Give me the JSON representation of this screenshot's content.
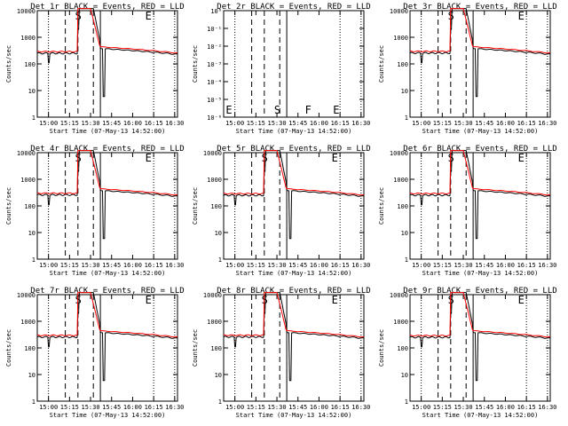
{
  "colors": {
    "events": "#000000",
    "lld": "#ff0000",
    "axes": "#000000",
    "background": "#ffffff"
  },
  "chart_data": [
    {
      "type": "line",
      "title": "Det 1r BLACK = Events, RED = LLD",
      "xlabel": "Start Time (07-May-13 14:52:00)",
      "ylabel": "Counts/sec",
      "y_scale": "log",
      "ylim": [
        1,
        10000
      ],
      "x_tick_labels": [
        "15:00",
        "15:15",
        "15:30",
        "15:45",
        "16:00",
        "16:15",
        "16:30"
      ],
      "y_tick_labels": [
        "1",
        "10",
        "100",
        "1000",
        "10000"
      ],
      "markers": [
        "S",
        "E"
      ],
      "series": []
    },
    {
      "type": "line",
      "title": "Det 2r BLACK = Events, RED = LLD",
      "xlabel": "Start Time (07-May-13 14:52:00)",
      "ylabel": "Counts/sec",
      "y_scale": "log",
      "ylim": [
        1e-06,
        1
      ],
      "x_tick_labels": [
        "15:00",
        "15:15",
        "15:30",
        "15:45",
        "16:00",
        "16:15",
        "16:30"
      ],
      "y_tick_labels": [
        "10⁻⁶",
        "10⁻⁵",
        "10⁻⁴",
        "10⁻³",
        "10⁻²",
        "10⁻¹",
        "10⁰"
      ],
      "markers": [
        "E",
        "S",
        "F",
        "E"
      ],
      "series": []
    },
    {
      "type": "line",
      "title": "Det 3r BLACK = Events, RED = LLD",
      "xlabel": "Start Time (07-May-13 14:52:00)",
      "ylabel": "Counts/sec",
      "y_scale": "log",
      "ylim": [
        1,
        10000
      ],
      "x_tick_labels": [
        "15:00",
        "15:15",
        "15:30",
        "15:45",
        "16:00",
        "16:15",
        "16:30"
      ],
      "y_tick_labels": [
        "1",
        "10",
        "100",
        "1000",
        "10000"
      ],
      "markers": [
        "S",
        "E"
      ],
      "series": []
    },
    {
      "type": "line",
      "title": "Det 4r BLACK = Events, RED = LLD",
      "xlabel": "Start Time (07-May-13 14:52:00)",
      "ylabel": "Counts/sec",
      "y_scale": "log",
      "ylim": [
        1,
        10000
      ],
      "x_tick_labels": [
        "15:00",
        "15:15",
        "15:30",
        "15:45",
        "16:00",
        "16:15",
        "16:30"
      ],
      "y_tick_labels": [
        "1",
        "10",
        "100",
        "1000",
        "10000"
      ],
      "markers": [
        "S",
        "E"
      ],
      "series": []
    },
    {
      "type": "line",
      "title": "Det 5r BLACK = Events, RED = LLD",
      "xlabel": "Start Time (07-May-13 14:52:00)",
      "ylabel": "Counts/sec",
      "y_scale": "log",
      "ylim": [
        1,
        10000
      ],
      "x_tick_labels": [
        "15:00",
        "15:15",
        "15:30",
        "15:45",
        "16:00",
        "16:15",
        "16:30"
      ],
      "y_tick_labels": [
        "1",
        "10",
        "100",
        "1000",
        "10000"
      ],
      "markers": [
        "S",
        "E"
      ],
      "series": []
    },
    {
      "type": "line",
      "title": "Det 6r BLACK = Events, RED = LLD",
      "xlabel": "Start Time (07-May-13 14:52:00)",
      "ylabel": "Counts/sec",
      "y_scale": "log",
      "ylim": [
        1,
        10000
      ],
      "x_tick_labels": [
        "15:00",
        "15:15",
        "15:30",
        "15:45",
        "16:00",
        "16:15",
        "16:30"
      ],
      "y_tick_labels": [
        "1",
        "10",
        "100",
        "1000",
        "10000"
      ],
      "markers": [
        "S",
        "E"
      ],
      "series": []
    },
    {
      "type": "line",
      "title": "Det 7r BLACK = Events, RED = LLD",
      "xlabel": "Start Time (07-May-13 14:52:00)",
      "ylabel": "Counts/sec",
      "y_scale": "log",
      "ylim": [
        1,
        10000
      ],
      "x_tick_labels": [
        "15:00",
        "15:15",
        "15:30",
        "15:45",
        "16:00",
        "16:15",
        "16:30"
      ],
      "y_tick_labels": [
        "1",
        "10",
        "100",
        "1000",
        "10000"
      ],
      "markers": [
        "S",
        "E"
      ],
      "series": []
    },
    {
      "type": "line",
      "title": "Det 8r BLACK = Events, RED = LLD",
      "xlabel": "Start Time (07-May-13 14:52:00)",
      "ylabel": "Counts/sec",
      "y_scale": "log",
      "ylim": [
        1,
        10000
      ],
      "x_tick_labels": [
        "15:00",
        "15:15",
        "15:30",
        "15:45",
        "16:00",
        "16:15",
        "16:30"
      ],
      "y_tick_labels": [
        "1",
        "10",
        "100",
        "1000",
        "10000"
      ],
      "markers": [
        "S",
        "E"
      ],
      "series": []
    },
    {
      "type": "line",
      "title": "Det 9r BLACK = Events, RED = LLD",
      "xlabel": "Start Time (07-May-13 14:52:00)",
      "ylabel": "Counts/sec",
      "y_scale": "log",
      "ylim": [
        1,
        10000
      ],
      "x_tick_labels": [
        "15:00",
        "15:15",
        "15:30",
        "15:45",
        "16:00",
        "16:15",
        "16:30"
      ],
      "y_tick_labels": [
        "1",
        "10",
        "100",
        "1000",
        "10000"
      ],
      "markers": [
        "S",
        "E"
      ],
      "series": []
    }
  ]
}
